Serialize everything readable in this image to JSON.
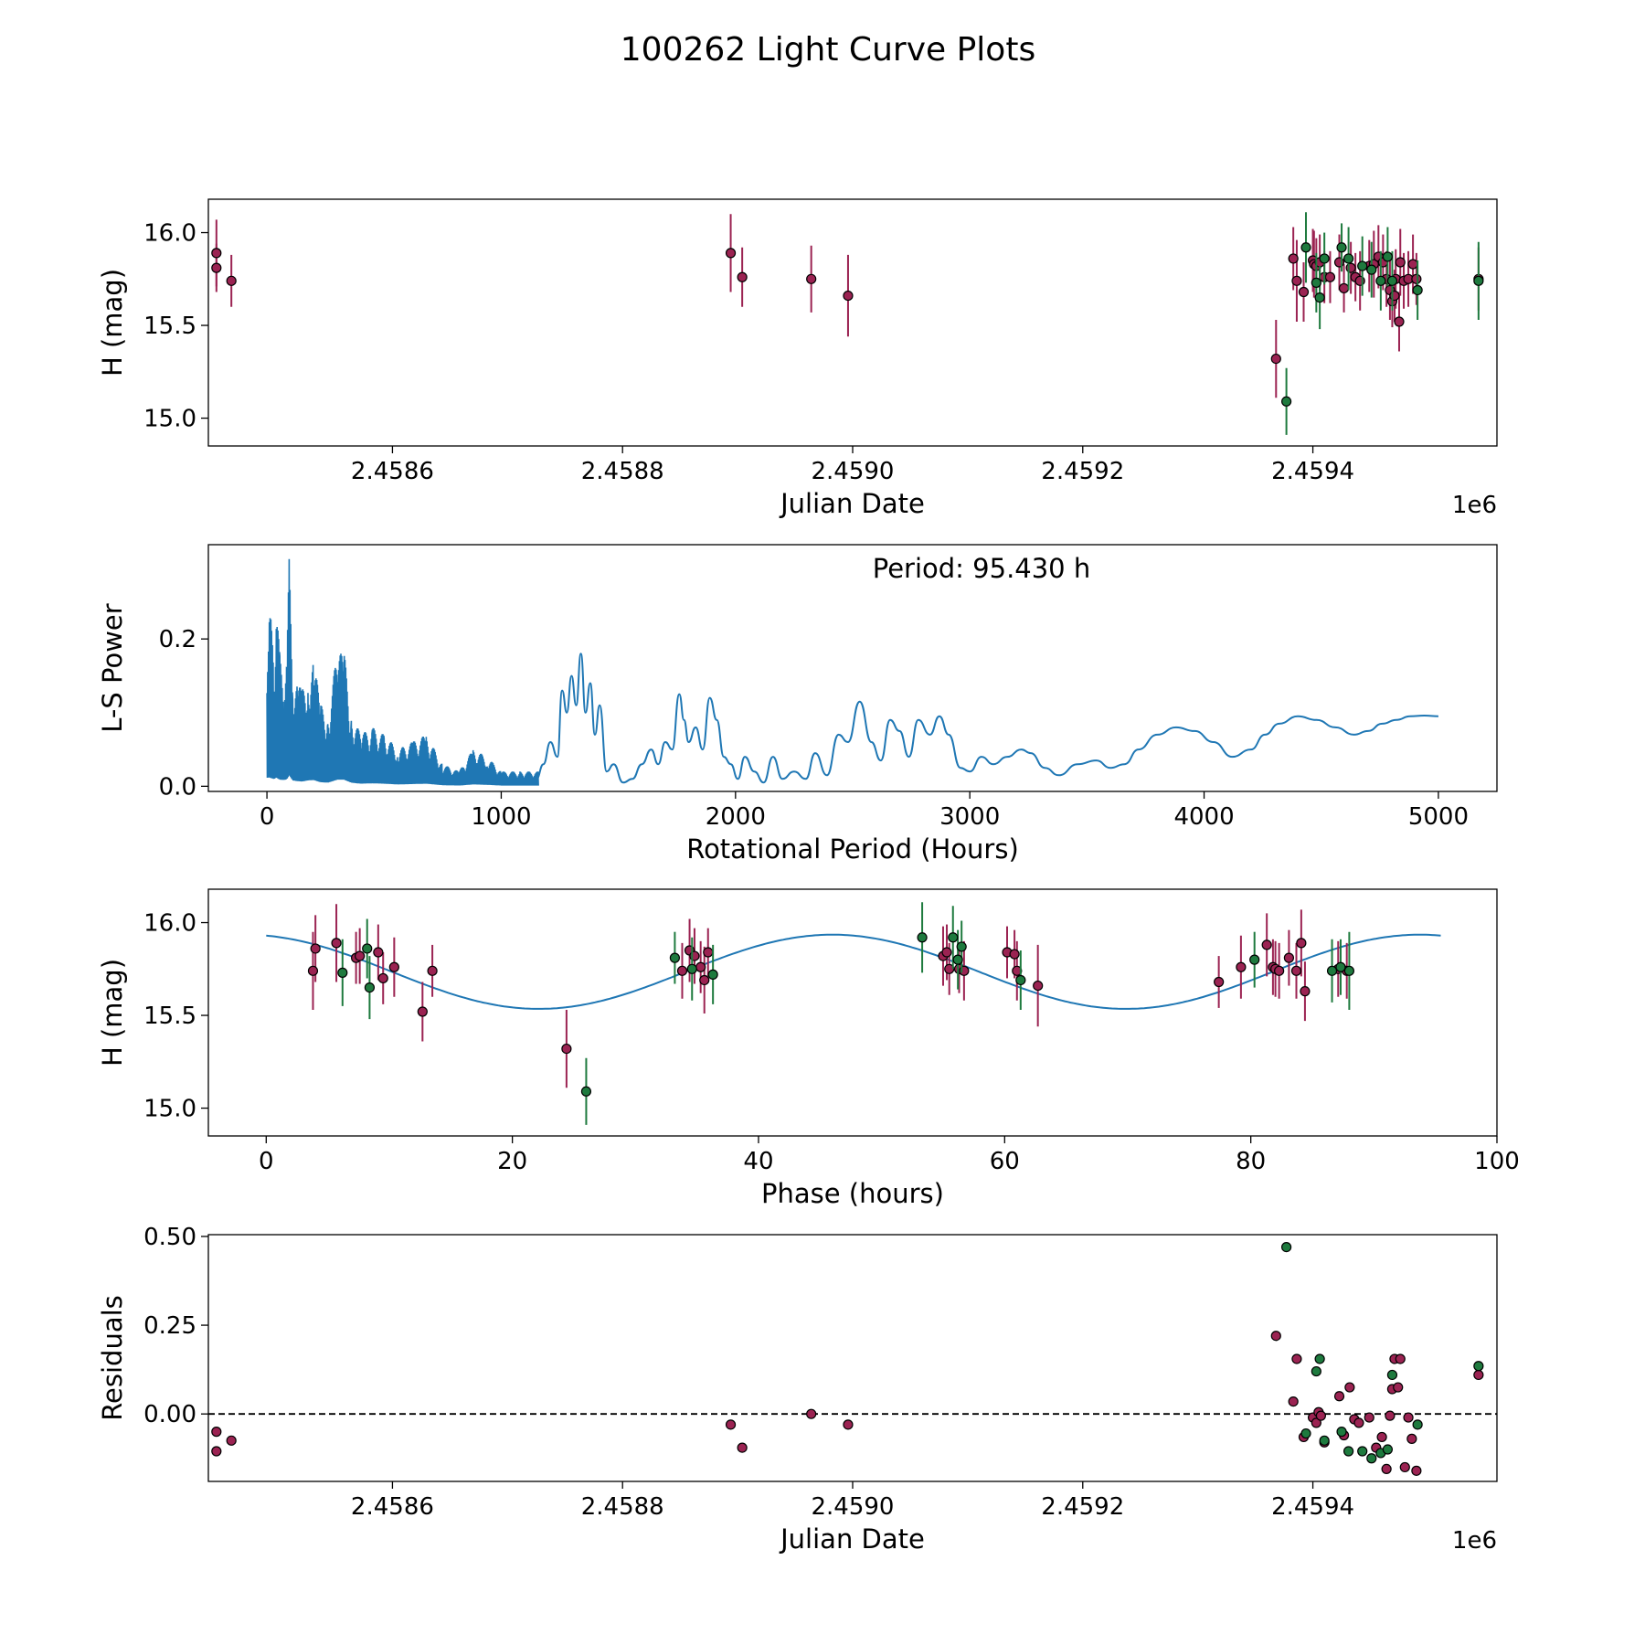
{
  "colors": {
    "maroon": "#9b2352",
    "green": "#1e7a3e",
    "line": "#1f77b4",
    "marker_edge": "#000000"
  },
  "chart_data": {
    "title": "100262 Light Curve Plots",
    "panels": [
      {
        "id": "lightcurve",
        "type": "scatter",
        "xlabel": "Julian Date",
        "ylabel": "H (mag)",
        "xlim": [
          2458440,
          2459560
        ],
        "ylim": [
          14.85,
          16.18
        ],
        "xticks": [
          2458600,
          2458800,
          2459000,
          2459200,
          2459400
        ],
        "xtick_labels": [
          "2.4586",
          "2.4588",
          "2.4590",
          "2.4592",
          "2.4594"
        ],
        "yticks": [
          15.0,
          15.5,
          16.0
        ],
        "ytick_labels": [
          "15.0",
          "15.5",
          "16.0"
        ],
        "offset_label": "1e6",
        "series": [
          {
            "name": "maroon",
            "x": [
              2458447,
              2458447,
              2458460,
              2458894,
              2458904,
              2458964,
              2458996,
              2459368,
              2459383,
              2459386,
              2459392,
              2459400,
              2459401,
              2459403,
              2459406,
              2459410,
              2459415,
              2459423,
              2459427,
              2459433,
              2459437,
              2459441,
              2459449,
              2459453,
              2459457,
              2459461,
              2459464,
              2459467,
              2459469,
              2459471,
              2459472,
              2459475,
              2459476,
              2459479,
              2459483,
              2459487,
              2459490,
              2459544
            ],
            "y": [
              15.89,
              15.81,
              15.74,
              15.89,
              15.76,
              15.75,
              15.66,
              15.32,
              15.86,
              15.74,
              15.68,
              15.85,
              15.83,
              15.82,
              15.84,
              15.76,
              15.76,
              15.84,
              15.7,
              15.81,
              15.76,
              15.74,
              15.82,
              15.83,
              15.87,
              15.84,
              15.75,
              15.69,
              15.63,
              15.66,
              15.75,
              15.52,
              15.84,
              15.74,
              15.75,
              15.83,
              15.75,
              15.75
            ],
            "err": [
              0.18,
              0.13,
              0.14,
              0.21,
              0.16,
              0.18,
              0.22,
              0.21,
              0.17,
              0.22,
              0.16,
              0.17,
              0.18,
              0.15,
              0.15,
              0.14,
              0.14,
              0.15,
              0.13,
              0.14,
              0.13,
              0.16,
              0.14,
              0.18,
              0.17,
              0.15,
              0.15,
              0.16,
              0.14,
              0.14,
              0.16,
              0.16,
              0.18,
              0.15,
              0.15,
              0.16,
              0.14,
              0.17
            ]
          },
          {
            "name": "green",
            "x": [
              2459377,
              2459394,
              2459403,
              2459406,
              2459410,
              2459425,
              2459431,
              2459443,
              2459451,
              2459459,
              2459465,
              2459469,
              2459491,
              2459544
            ],
            "y": [
              15.09,
              15.92,
              15.73,
              15.65,
              15.86,
              15.92,
              15.86,
              15.82,
              15.8,
              15.74,
              15.87,
              15.74,
              15.69,
              15.74
            ],
            "err": [
              0.18,
              0.19,
              0.16,
              0.17,
              0.14,
              0.13,
              0.17,
              0.16,
              0.15,
              0.16,
              0.16,
              0.16,
              0.16,
              0.21
            ]
          }
        ]
      },
      {
        "id": "periodogram",
        "type": "line",
        "xlabel": "Rotational Period (Hours)",
        "ylabel": "L-S Power",
        "annotation": "Period: 95.430 h",
        "xlim": [
          -250,
          5250
        ],
        "ylim": [
          -0.007,
          0.328
        ],
        "xticks": [
          0,
          1000,
          2000,
          3000,
          4000,
          5000
        ],
        "xtick_labels": [
          "0",
          "1000",
          "2000",
          "3000",
          "4000",
          "5000"
        ],
        "yticks": [
          0.0,
          0.2
        ],
        "ytick_labels": [
          "0.0",
          "0.2"
        ],
        "envelope": {
          "x": [
            0,
            10,
            20,
            30,
            40,
            55,
            70,
            85,
            95,
            110,
            130,
            150,
            175,
            200,
            230,
            260,
            300,
            330,
            360,
            400,
            450,
            500,
            560,
            620,
            680,
            750,
            820,
            880,
            940,
            1000,
            1080,
            1160
          ],
          "y": [
            0.23,
            0.24,
            0.22,
            0.2,
            0.24,
            0.18,
            0.17,
            0.19,
            0.31,
            0.16,
            0.14,
            0.13,
            0.16,
            0.17,
            0.11,
            0.1,
            0.18,
            0.18,
            0.1,
            0.07,
            0.08,
            0.07,
            0.05,
            0.06,
            0.07,
            0.03,
            0.02,
            0.05,
            0.04,
            0.02,
            0.02,
            0.02
          ]
        },
        "smooth": {
          "x": [
            1150,
            1180,
            1210,
            1240,
            1260,
            1280,
            1300,
            1320,
            1340,
            1360,
            1380,
            1400,
            1420,
            1450,
            1480,
            1520,
            1560,
            1600,
            1640,
            1670,
            1700,
            1730,
            1760,
            1780,
            1800,
            1830,
            1860,
            1890,
            1920,
            1950,
            1980,
            2010,
            2040,
            2080,
            2120,
            2160,
            2200,
            2250,
            2300,
            2340,
            2390,
            2440,
            2480,
            2530,
            2580,
            2620,
            2660,
            2700,
            2740,
            2780,
            2830,
            2870,
            2910,
            2960,
            3000,
            3050,
            3100,
            3160,
            3220,
            3260,
            3320,
            3380,
            3460,
            3540,
            3600,
            3660,
            3720,
            3800,
            3880,
            3960,
            4040,
            4120,
            4200,
            4260,
            4320,
            4400,
            4480,
            4560,
            4640,
            4700,
            4760,
            4820,
            4880,
            4940,
            5000
          ],
          "y": [
            0.01,
            0.03,
            0.06,
            0.04,
            0.13,
            0.1,
            0.15,
            0.11,
            0.18,
            0.1,
            0.14,
            0.07,
            0.11,
            0.02,
            0.03,
            0.005,
            0.01,
            0.03,
            0.05,
            0.03,
            0.06,
            0.05,
            0.125,
            0.09,
            0.06,
            0.08,
            0.05,
            0.12,
            0.09,
            0.04,
            0.03,
            0.01,
            0.04,
            0.02,
            0.005,
            0.04,
            0.01,
            0.02,
            0.01,
            0.045,
            0.015,
            0.07,
            0.06,
            0.115,
            0.06,
            0.035,
            0.09,
            0.075,
            0.04,
            0.09,
            0.07,
            0.095,
            0.07,
            0.025,
            0.02,
            0.04,
            0.03,
            0.04,
            0.05,
            0.045,
            0.025,
            0.015,
            0.03,
            0.035,
            0.025,
            0.03,
            0.05,
            0.07,
            0.08,
            0.075,
            0.06,
            0.04,
            0.05,
            0.07,
            0.085,
            0.095,
            0.09,
            0.08,
            0.07,
            0.075,
            0.085,
            0.09,
            0.095,
            0.096,
            0.095
          ]
        }
      },
      {
        "id": "phased",
        "type": "scatter",
        "xlabel": "Phase (hours)",
        "ylabel": "H (mag)",
        "xlim": [
          -4.7,
          100.0
        ],
        "ylim": [
          14.85,
          16.18
        ],
        "xticks": [
          0,
          20,
          40,
          60,
          80,
          100
        ],
        "xtick_labels": [
          "0",
          "20",
          "40",
          "60",
          "80",
          "100"
        ],
        "yticks": [
          15.0,
          15.5,
          16.0
        ],
        "ytick_labels": [
          "15.0",
          "15.5",
          "16.0"
        ],
        "model": {
          "period": 95.43,
          "mean": 15.735,
          "amp": 0.2,
          "peak_phase": 46.0,
          "x_end": 95.43
        },
        "series": [
          {
            "name": "maroon",
            "x": [
              3.8,
              4.0,
              5.7,
              7.3,
              7.6,
              9.1,
              9.5,
              10.4,
              12.7,
              13.5,
              24.4,
              33.8,
              34.4,
              34.8,
              35.3,
              35.6,
              35.9,
              55.0,
              55.3,
              55.5,
              56.3,
              56.7,
              60.2,
              60.8,
              61.0,
              62.7,
              77.4,
              79.2,
              81.3,
              81.8,
              82.0,
              82.3,
              83.1,
              83.7,
              84.1,
              84.4,
              87.1,
              87.8
            ],
            "y": [
              15.74,
              15.86,
              15.89,
              15.81,
              15.82,
              15.84,
              15.7,
              15.76,
              15.52,
              15.74,
              15.32,
              15.74,
              15.85,
              15.82,
              15.76,
              15.69,
              15.84,
              15.82,
              15.84,
              15.75,
              15.75,
              15.74,
              15.84,
              15.83,
              15.74,
              15.66,
              15.68,
              15.76,
              15.88,
              15.76,
              15.75,
              15.74,
              15.81,
              15.74,
              15.89,
              15.63,
              15.75,
              15.74
            ],
            "err": [
              0.21,
              0.18,
              0.21,
              0.14,
              0.15,
              0.15,
              0.14,
              0.16,
              0.16,
              0.14,
              0.21,
              0.15,
              0.17,
              0.15,
              0.14,
              0.18,
              0.13,
              0.16,
              0.15,
              0.14,
              0.13,
              0.16,
              0.14,
              0.13,
              0.16,
              0.22,
              0.14,
              0.17,
              0.17,
              0.15,
              0.15,
              0.15,
              0.15,
              0.15,
              0.18,
              0.16,
              0.15,
              0.15
            ]
          },
          {
            "name": "green",
            "x": [
              6.2,
              8.2,
              8.4,
              26.0,
              33.2,
              34.6,
              36.3,
              53.3,
              55.8,
              56.2,
              56.5,
              61.3,
              80.3,
              86.6,
              87.3,
              88.0
            ],
            "y": [
              15.73,
              15.86,
              15.65,
              15.09,
              15.81,
              15.75,
              15.72,
              15.92,
              15.92,
              15.8,
              15.87,
              15.69,
              15.8,
              15.74,
              15.76,
              15.74
            ],
            "err": [
              0.18,
              0.16,
              0.17,
              0.18,
              0.14,
              0.17,
              0.16,
              0.19,
              0.17,
              0.16,
              0.14,
              0.16,
              0.15,
              0.17,
              0.15,
              0.21
            ]
          }
        ]
      },
      {
        "id": "residuals",
        "type": "scatter",
        "xlabel": "Julian Date",
        "ylabel": "Residuals",
        "xlim": [
          2458440,
          2459560
        ],
        "ylim": [
          -0.19,
          0.505
        ],
        "xticks": [
          2458600,
          2458800,
          2459000,
          2459200,
          2459400
        ],
        "xtick_labels": [
          "2.4586",
          "2.4588",
          "2.4590",
          "2.4592",
          "2.4594"
        ],
        "yticks": [
          0.0,
          0.25,
          0.5
        ],
        "ytick_labels": [
          "0.00",
          "0.25",
          "0.50"
        ],
        "offset_label": "1e6",
        "zero_line": 0.0,
        "series": [
          {
            "name": "maroon",
            "x": [
              2458447,
              2458447,
              2458460,
              2458894,
              2458904,
              2458964,
              2458996,
              2459368,
              2459383,
              2459386,
              2459392,
              2459400,
              2459403,
              2459405,
              2459407,
              2459410,
              2459423,
              2459427,
              2459432,
              2459436,
              2459440,
              2459449,
              2459455,
              2459460,
              2459464,
              2459467,
              2459469,
              2459471,
              2459474,
              2459476,
              2459480,
              2459483,
              2459486,
              2459490,
              2459544
            ],
            "y": [
              -0.05,
              -0.105,
              -0.075,
              -0.03,
              -0.095,
              0.0,
              -0.03,
              0.22,
              0.035,
              0.155,
              -0.065,
              -0.01,
              -0.025,
              0.005,
              -0.005,
              -0.08,
              0.05,
              -0.06,
              0.075,
              -0.015,
              -0.025,
              -0.01,
              -0.095,
              -0.065,
              -0.155,
              -0.005,
              0.07,
              0.155,
              0.075,
              0.155,
              -0.15,
              -0.01,
              -0.07,
              -0.16,
              0.11
            ],
            "err": []
          },
          {
            "name": "green",
            "x": [
              2459377,
              2459394,
              2459403,
              2459406,
              2459410,
              2459425,
              2459431,
              2459443,
              2459451,
              2459459,
              2459465,
              2459469,
              2459491,
              2459544
            ],
            "y": [
              0.47,
              -0.055,
              0.12,
              0.155,
              -0.075,
              -0.05,
              -0.105,
              -0.105,
              -0.125,
              -0.11,
              -0.1,
              0.11,
              -0.03,
              0.135
            ],
            "err": []
          }
        ]
      }
    ]
  }
}
